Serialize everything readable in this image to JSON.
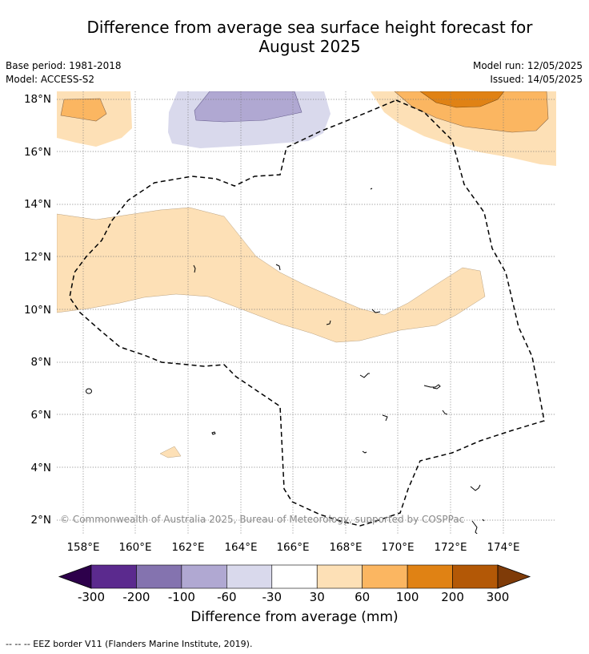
{
  "title_line1": "Difference from average sea surface height forecast for",
  "title_line2": "August 2025",
  "meta": {
    "base_period": "Base period: 1981-2018",
    "model": "Model: ACCESS-S2",
    "model_run": "Model run: 12/05/2025",
    "issued": "Issued: 14/05/2025"
  },
  "map": {
    "lat_labels": [
      "18°N",
      "16°N",
      "14°N",
      "12°N",
      "10°N",
      "8°N",
      "6°N",
      "4°N",
      "2°N"
    ],
    "lon_labels": [
      "158°E",
      "160°E",
      "162°E",
      "164°E",
      "166°E",
      "168°E",
      "170°E",
      "172°E",
      "174°E"
    ],
    "copyright": "© Commonwealth of Australia 2025, Bureau of Meteorology, supported by COSPPac"
  },
  "colorbar": {
    "ticks": [
      "-300",
      "-200",
      "-100",
      "-60",
      "-30",
      "30",
      "60",
      "100",
      "200",
      "300"
    ],
    "colors": [
      "#2d004b",
      "#5b2a8e",
      "#8473af",
      "#b0a8d2",
      "#d9d9ec",
      "#ffffff",
      "#fde0b6",
      "#fbb661",
      "#e08214",
      "#b35806",
      "#7f3b08"
    ],
    "label": "Difference from average (mm)"
  },
  "footnote": "-- -- -- EEZ border V11 (Flanders Marine Institute, 2019)."
}
